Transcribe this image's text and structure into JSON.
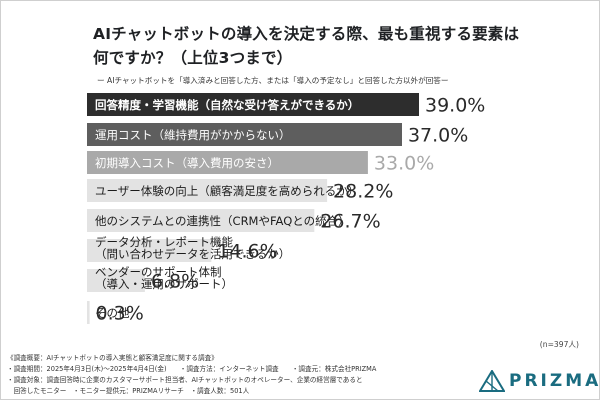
{
  "title_line1": "AIチャットボットの導入を決定する際、最も重視する要素は",
  "title_line2": "何ですか？（上位3つまで）",
  "subtitle": "ー AIチャットボットを「導入済みと回答した方、または「導入の予定なし」と回答した方以外が回答ー",
  "n_label": "(n=397人)",
  "footer": {
    "line1": "《調査概要：AIチャットボットの導入実態と顧客満足度に関する調査》",
    "line2": "・調査期間：2025年4月3日(木)～2025年4月4日(金)　　・調査方法：インターネット調査　　・調査元：株式会社PRIZMA",
    "line3": "・調査対象：調査回答時に企業のカスタマーサポート担当者、AIチャットボットのオペレーター、企業の経営層であると",
    "line4": "　回答したモニター　・モニター提供元：PRIZMAリサーチ　・調査人数：501人"
  },
  "logo": {
    "text": "PRIZMA",
    "icon": "prizma-triangle-logo-icon",
    "color": "#1a6c80"
  },
  "colors": {
    "bar1": "#2d2d2d",
    "bar2": "#5e5e5e",
    "bar3": "#a9a9a9",
    "bar_rest": "#e3e3e3",
    "value_light": "#a9a9a9",
    "value_dark": "#2a2a2a"
  },
  "chart_data": {
    "type": "bar",
    "orientation": "horizontal",
    "title": "AIチャットボットの導入を決定する際、最も重視する要素は何ですか？（上位3つまで）",
    "unit": "%",
    "xlim": [
      0,
      39
    ],
    "grid": false,
    "categories": [
      [
        "回答精度・学習機能（自然な受け答えができるか）"
      ],
      [
        "運用コスト（維持費用がかからない）"
      ],
      [
        "初期導入コスト（導入費用の安さ）"
      ],
      [
        "ユーザー体験の向上（顧客満足度を高められるか）"
      ],
      [
        "他のシステムとの連携性（CRMやFAQとの統合）"
      ],
      [
        "データ分析・レポート機能",
        "（問い合わせデータを活用できるか）"
      ],
      [
        "ベンダーのサポート体制",
        "（導入・運用のサポート）"
      ],
      [
        "その他"
      ]
    ],
    "values": [
      39.0,
      37.0,
      33.0,
      28.2,
      26.7,
      14.6,
      6.8,
      0.3
    ],
    "value_labels": [
      "39.0%",
      "37.0%",
      "33.0%",
      "28.2%",
      "26.7%",
      "14.6%",
      "6.8%",
      "0.3%"
    ]
  }
}
